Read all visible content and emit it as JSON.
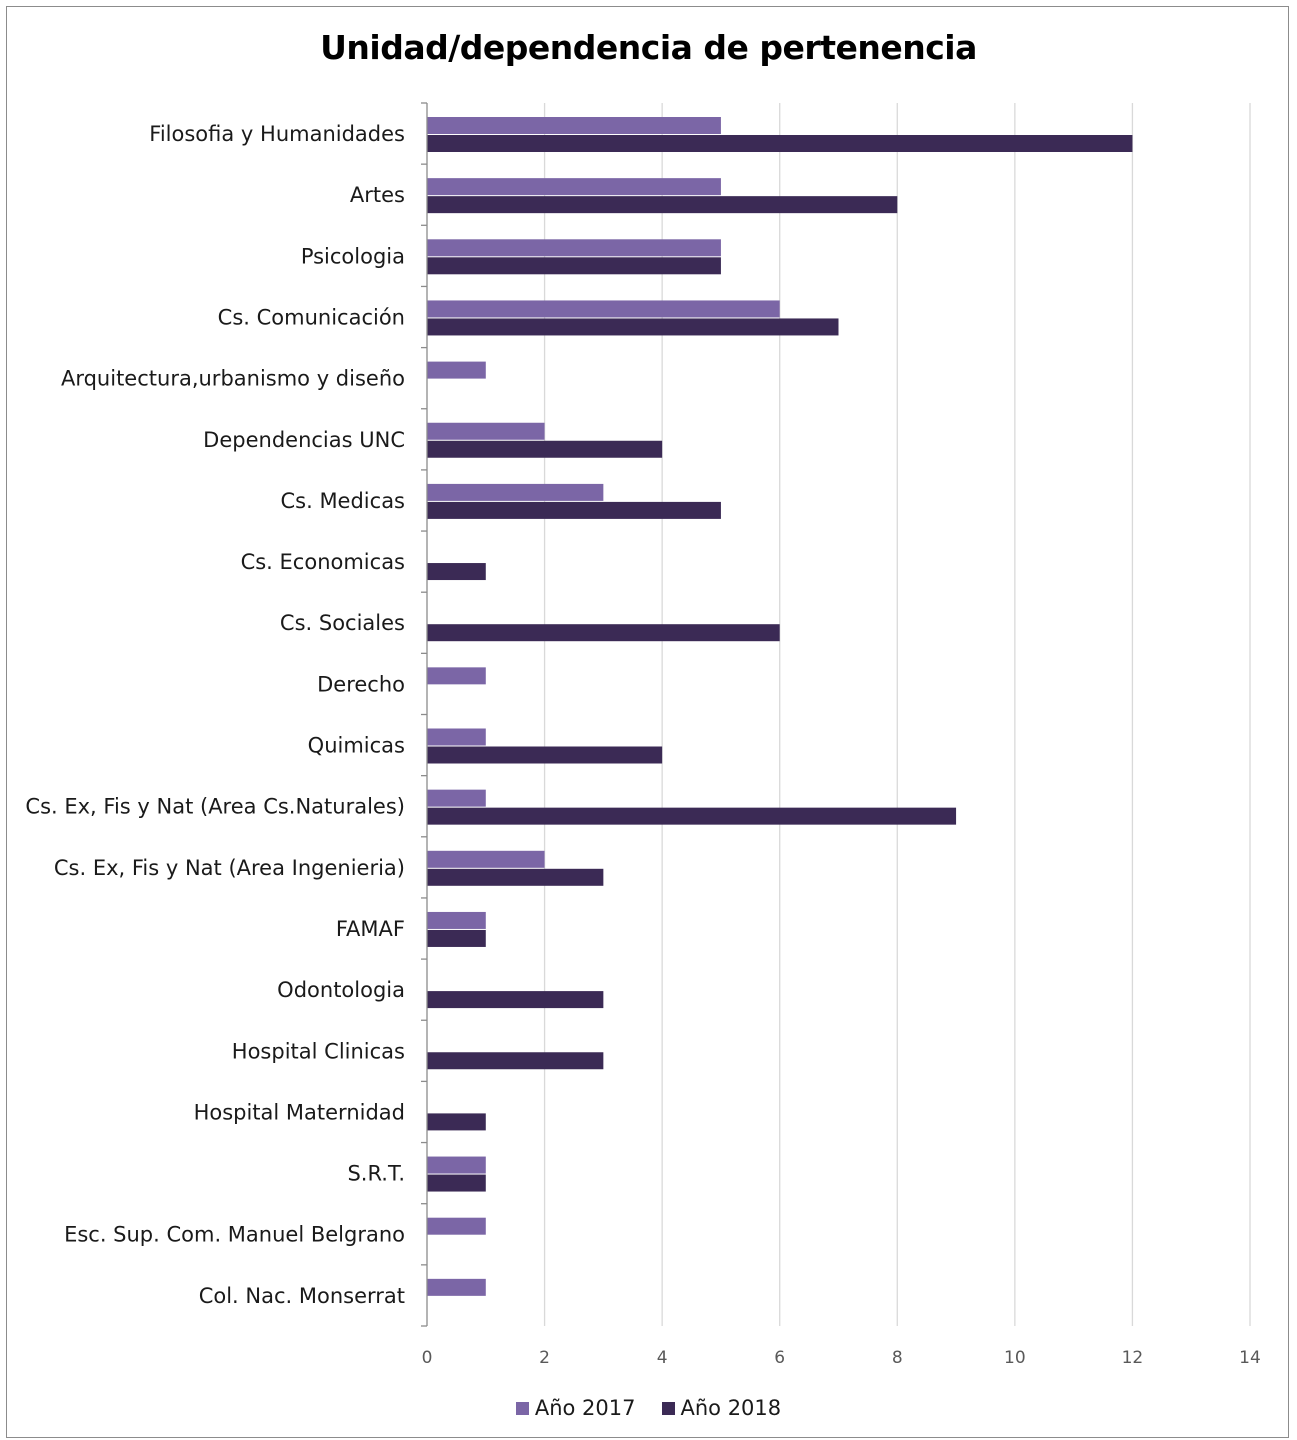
{
  "chart_data": {
    "type": "bar",
    "orientation": "horizontal",
    "title": "Unidad/dependencia de pertenencia",
    "categories": [
      "Filosofia y Humanidades",
      "Artes",
      "Psicologia",
      "Cs. Comunicación",
      "Arquitectura,urbanismo y diseño",
      "Dependencias UNC",
      "Cs. Medicas",
      "Cs. Economicas",
      "Cs. Sociales",
      "Derecho",
      "Quimicas",
      "Cs. Ex, Fis y Nat (Area Cs.Naturales)",
      "Cs. Ex, Fis y Nat (Area Ingenieria)",
      "FAMAF",
      "Odontologia",
      "Hospital Clinicas",
      "Hospital Maternidad",
      "S.R.T.",
      "Esc. Sup. Com. Manuel Belgrano",
      "Col. Nac. Monserrat"
    ],
    "series": [
      {
        "name": "Año 2017",
        "color": "#7b66a6",
        "values": [
          5,
          5,
          5,
          6,
          1,
          2,
          3,
          0,
          0,
          1,
          1,
          1,
          2,
          1,
          0,
          0,
          0,
          1,
          1,
          1
        ]
      },
      {
        "name": "Año 2018",
        "color": "#3b2a55",
        "values": [
          12,
          8,
          5,
          7,
          0,
          4,
          5,
          1,
          6,
          0,
          4,
          9,
          3,
          1,
          3,
          3,
          1,
          1,
          0,
          0
        ]
      }
    ],
    "xlim": [
      0,
      14
    ],
    "xticks": [
      0,
      2,
      4,
      6,
      8,
      10,
      12,
      14
    ],
    "grid": "vertical",
    "legend": "bottom-center",
    "xlabel": "",
    "ylabel": ""
  }
}
